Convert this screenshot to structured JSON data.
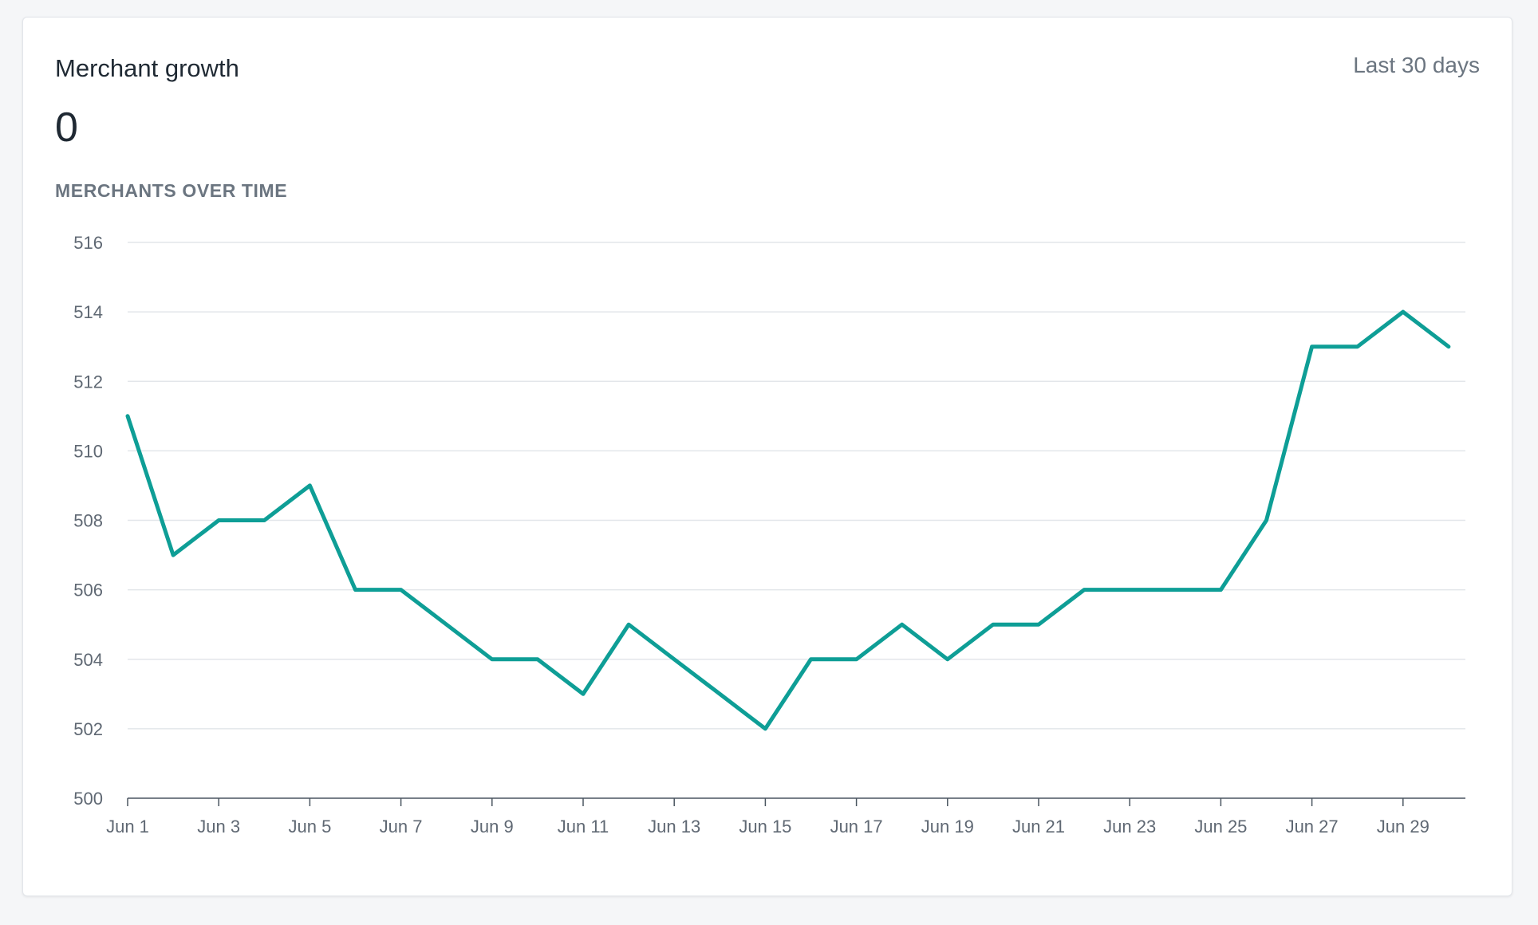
{
  "card": {
    "title": "Merchant growth",
    "date_range": "Last 30 days",
    "metric_value": "0",
    "chart_subtitle": "MERCHANTS OVER TIME"
  },
  "colors": {
    "line": "#0e9e96",
    "grid": "#e3e6ea",
    "axis": "#4a5560",
    "label": "#5f6873"
  },
  "chart_data": {
    "type": "line",
    "title": "",
    "xlabel": "",
    "ylabel": "",
    "ylim": [
      500,
      516
    ],
    "y_ticks": [
      500,
      502,
      504,
      506,
      508,
      510,
      512,
      514,
      516
    ],
    "x_tick_labels": [
      "Jun 1",
      "Jun 3",
      "Jun 5",
      "Jun 7",
      "Jun 9",
      "Jun 11",
      "Jun 13",
      "Jun 15",
      "Jun 17",
      "Jun 19",
      "Jun 21",
      "Jun 23",
      "Jun 25",
      "Jun 27",
      "Jun 29"
    ],
    "grid": true,
    "legend": "none",
    "x": [
      "Jun 1",
      "Jun 2",
      "Jun 3",
      "Jun 4",
      "Jun 5",
      "Jun 6",
      "Jun 7",
      "Jun 8",
      "Jun 9",
      "Jun 10",
      "Jun 11",
      "Jun 12",
      "Jun 13",
      "Jun 14",
      "Jun 15",
      "Jun 16",
      "Jun 17",
      "Jun 18",
      "Jun 19",
      "Jun 20",
      "Jun 21",
      "Jun 22",
      "Jun 23",
      "Jun 24",
      "Jun 25",
      "Jun 26",
      "Jun 27",
      "Jun 28",
      "Jun 29",
      "Jun 30"
    ],
    "series": [
      {
        "values": [
          511,
          507,
          508,
          508,
          509,
          506,
          506,
          505,
          504,
          504,
          503,
          505,
          504,
          503,
          502,
          504,
          504,
          505,
          504,
          505,
          505,
          506,
          506,
          506,
          506,
          508,
          513,
          513,
          514,
          513
        ]
      }
    ]
  }
}
